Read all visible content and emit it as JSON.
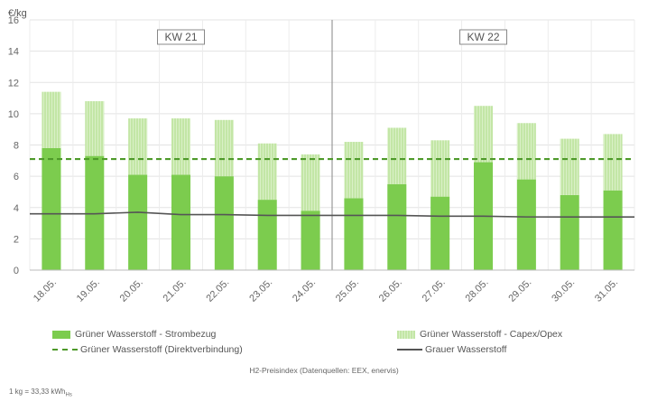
{
  "chart_data": {
    "type": "bar",
    "y_unit": "€/kg",
    "ylim": [
      0,
      16
    ],
    "yticks": [
      0,
      2,
      4,
      6,
      8,
      10,
      12,
      14,
      16
    ],
    "categories": [
      "18.05.",
      "19.05.",
      "20.05.",
      "21.05.",
      "22.05.",
      "23.05.",
      "24.05.",
      "25.05.",
      "26.05.",
      "27.05.",
      "28.05.",
      "29.05.",
      "30.05.",
      "31.05."
    ],
    "series": [
      {
        "name": "Grüner Wasserstoff - Strombezug",
        "kind": "stacked-bar",
        "color": "#7ccc4e",
        "values": [
          7.8,
          7.3,
          6.1,
          6.1,
          6.0,
          4.5,
          3.8,
          4.6,
          5.5,
          4.7,
          6.9,
          5.8,
          4.8,
          5.1
        ]
      },
      {
        "name": "Grüner Wasserstoff - Capex/Opex",
        "kind": "stacked-bar",
        "color": "#c3e6a6",
        "values": [
          3.6,
          3.5,
          3.6,
          3.6,
          3.6,
          3.6,
          3.6,
          3.6,
          3.6,
          3.6,
          3.6,
          3.6,
          3.6,
          3.6
        ]
      },
      {
        "name": "Grüner Wasserstoff (Direktverbindung)",
        "kind": "dashed-line",
        "color": "#4e9a2a",
        "values": [
          7.1,
          7.1,
          7.1,
          7.1,
          7.1,
          7.1,
          7.1,
          7.1,
          7.1,
          7.1,
          7.1,
          7.1,
          7.1,
          7.1
        ]
      },
      {
        "name": "Grauer Wasserstoff",
        "kind": "line",
        "color": "#555555",
        "values": [
          3.6,
          3.6,
          3.7,
          3.55,
          3.55,
          3.5,
          3.5,
          3.5,
          3.5,
          3.45,
          3.45,
          3.4,
          3.4,
          3.4
        ]
      }
    ],
    "week_labels": [
      "KW 21",
      "KW 22"
    ],
    "grid": true,
    "legend_position": "bottom"
  },
  "caption": "H2-Preisindex (Datenquellen: EEX, enervis)",
  "footnote": "1 kg = 33,33 kWh",
  "footnote_sub": "Hs"
}
